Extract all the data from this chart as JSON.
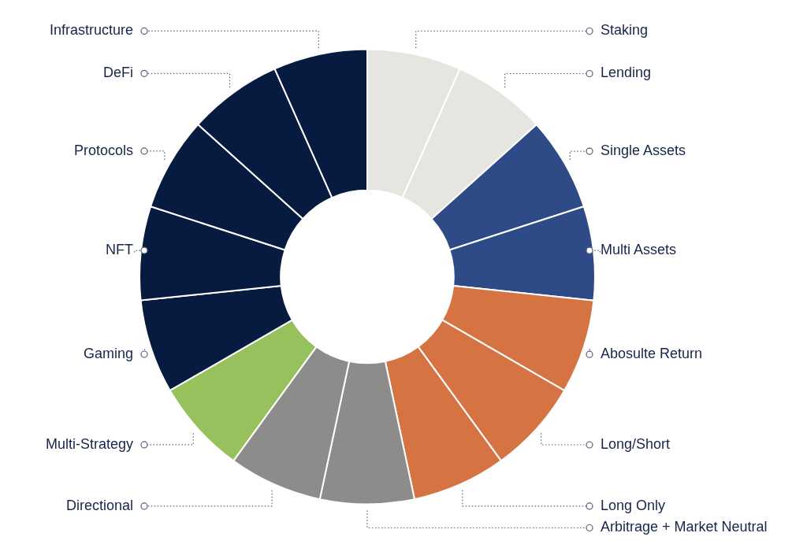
{
  "chart_data": {
    "type": "donut",
    "categories": [
      "Staking",
      "Lending",
      "Single Assets",
      "Multi Assets",
      "Abosulte Return",
      "Long/Short",
      "Long Only",
      "Arbitrage + Market Neutral",
      "Directional",
      "Multi-Strategy",
      "Gaming",
      "NFT",
      "Protocols",
      "DeFi",
      "Infrastructure"
    ],
    "values": [
      6.67,
      6.67,
      6.66,
      6.67,
      6.67,
      6.66,
      6.67,
      6.67,
      6.66,
      6.67,
      6.67,
      6.66,
      6.67,
      6.67,
      6.66
    ],
    "colors": [
      "#e6e5e0",
      "#e6e5e0",
      "#2e4a87",
      "#2e4a87",
      "#d67342",
      "#d67342",
      "#d67342",
      "#8c8d8a",
      "#8c8d8a",
      "#97c15c",
      "#071a40",
      "#071a40",
      "#071a40",
      "#071a40",
      "#071a40"
    ]
  }
}
